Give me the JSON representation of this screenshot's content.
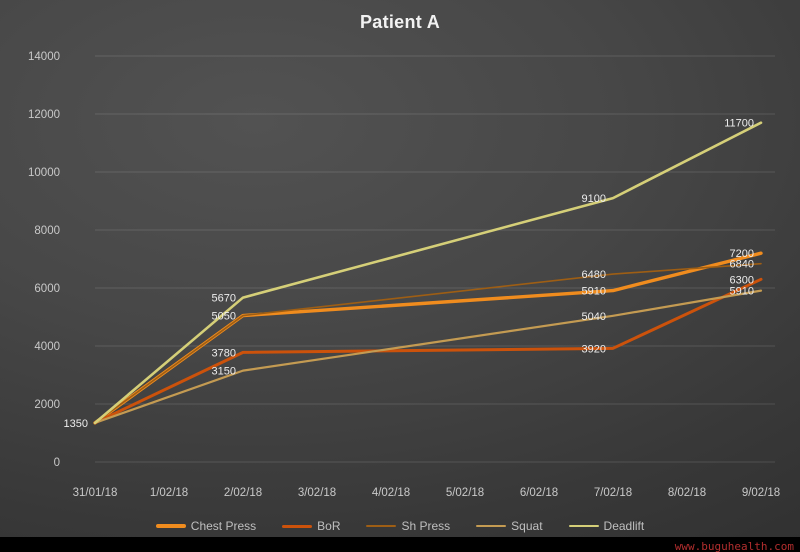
{
  "title": "Patient A",
  "watermark": "www.buguhealth.com",
  "style": {
    "axis_label_color": "#c9c9c9",
    "data_label_color": "#ededed",
    "legend_text_color": "#bfbfbf",
    "gridline_color": "rgba(255,255,255,0.13)",
    "watermark_color": "#b22e2e",
    "title_color": "#f2f2f2"
  },
  "chart_data": {
    "type": "line",
    "title": "Patient A",
    "xlabel": "",
    "ylabel": "",
    "x_tick_labels": [
      "31/01/18",
      "1/02/18",
      "2/02/18",
      "3/02/18",
      "4/02/18",
      "5/02/18",
      "6/02/18",
      "7/02/18",
      "8/02/18",
      "9/02/18"
    ],
    "point_x_indices": [
      0,
      2,
      7,
      9
    ],
    "point_dates": [
      "31/01/18",
      "2/02/18",
      "7/02/18",
      "9/02/18"
    ],
    "y_ticks": [
      0,
      2000,
      4000,
      6000,
      8000,
      10000,
      12000,
      14000
    ],
    "ylim": [
      0,
      14000
    ],
    "grid": "horizontal",
    "legend_position": "bottom",
    "series": [
      {
        "name": "Chest Press",
        "color": "#F08C1E",
        "width": 3.4,
        "values": [
          1350,
          5050,
          5910,
          7200
        ],
        "point_labels": [
          "",
          "5050",
          "5910",
          "7200"
        ]
      },
      {
        "name": "BoR",
        "color": "#CC520B",
        "width": 3.0,
        "values": [
          1350,
          3780,
          3920,
          6300
        ],
        "point_labels": [
          "",
          "3780",
          "3920",
          "6300"
        ]
      },
      {
        "name": "Sh Press",
        "color": "#9E5E14",
        "width": 1.6,
        "values": [
          1350,
          5050,
          6480,
          6840
        ],
        "point_labels": [
          "",
          "",
          "6480",
          "6840"
        ]
      },
      {
        "name": "Squat",
        "color": "#C49B52",
        "width": 2.2,
        "values": [
          1350,
          3150,
          5040,
          5910
        ],
        "point_labels": [
          "",
          "3150",
          "5040",
          "5910"
        ]
      },
      {
        "name": "Deadlift",
        "color": "#D5CF78",
        "width": 2.6,
        "values": [
          1350,
          5670,
          9100,
          11700
        ],
        "point_labels": [
          "1350",
          "5670",
          "9100",
          "11700"
        ]
      }
    ]
  }
}
